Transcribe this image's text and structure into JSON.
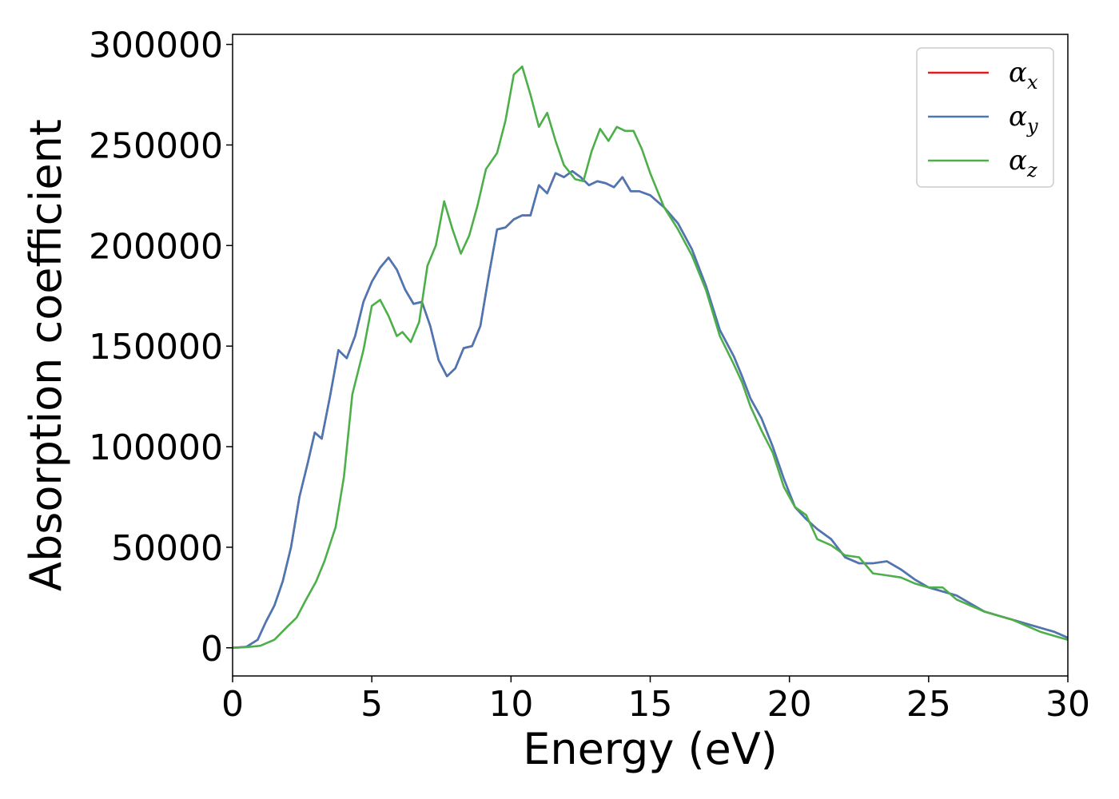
{
  "chart_data": {
    "type": "line",
    "title": "",
    "xlabel": "Energy (eV)",
    "ylabel": "Absorption coefficient",
    "xlim": [
      0,
      30
    ],
    "ylim": [
      -14000,
      305000
    ],
    "xticks": [
      0,
      5,
      10,
      15,
      20,
      25,
      30
    ],
    "yticks": [
      0,
      50000,
      100000,
      150000,
      200000,
      250000,
      300000
    ],
    "xtick_labels": [
      "0",
      "5",
      "10",
      "15",
      "20",
      "25",
      "30"
    ],
    "ytick_labels": [
      "0",
      "50000",
      "100000",
      "150000",
      "200000",
      "250000",
      "300000"
    ],
    "grid": false,
    "legend_position": "top-right",
    "series": [
      {
        "name": "α_x",
        "legend_symbol": "α",
        "legend_subscript": "x",
        "color": "#e41a1c",
        "points": [
          [
            0,
            0
          ],
          [
            0.5,
            500
          ],
          [
            0.9,
            4000
          ],
          [
            1.2,
            13000
          ],
          [
            1.5,
            21000
          ],
          [
            1.8,
            33000
          ],
          [
            2.1,
            50000
          ],
          [
            2.4,
            75000
          ],
          [
            2.7,
            92000
          ],
          [
            2.95,
            107000
          ],
          [
            3.2,
            104000
          ],
          [
            3.5,
            125000
          ],
          [
            3.8,
            148000
          ],
          [
            4.1,
            144000
          ],
          [
            4.4,
            155000
          ],
          [
            4.7,
            172000
          ],
          [
            5.0,
            182000
          ],
          [
            5.3,
            189000
          ],
          [
            5.6,
            194000
          ],
          [
            5.9,
            188000
          ],
          [
            6.2,
            178000
          ],
          [
            6.5,
            171000
          ],
          [
            6.8,
            172000
          ],
          [
            7.1,
            160000
          ],
          [
            7.4,
            143000
          ],
          [
            7.7,
            135000
          ],
          [
            8.0,
            139000
          ],
          [
            8.3,
            149000
          ],
          [
            8.6,
            150000
          ],
          [
            8.9,
            160000
          ],
          [
            9.2,
            185000
          ],
          [
            9.5,
            208000
          ],
          [
            9.8,
            209000
          ],
          [
            10.1,
            213000
          ],
          [
            10.4,
            215000
          ],
          [
            10.7,
            215000
          ],
          [
            11.0,
            230000
          ],
          [
            11.3,
            226000
          ],
          [
            11.6,
            236000
          ],
          [
            11.9,
            234000
          ],
          [
            12.2,
            237000
          ],
          [
            12.5,
            234000
          ],
          [
            12.8,
            230000
          ],
          [
            13.1,
            232000
          ],
          [
            13.4,
            231000
          ],
          [
            13.7,
            229000
          ],
          [
            14.0,
            234000
          ],
          [
            14.3,
            227000
          ],
          [
            14.6,
            227000
          ],
          [
            15.0,
            225000
          ],
          [
            15.5,
            219000
          ],
          [
            16.0,
            211000
          ],
          [
            16.5,
            198000
          ],
          [
            17.0,
            180000
          ],
          [
            17.5,
            158000
          ],
          [
            18.0,
            145000
          ],
          [
            18.3,
            135000
          ],
          [
            18.6,
            124000
          ],
          [
            19.0,
            114000
          ],
          [
            19.4,
            100000
          ],
          [
            19.8,
            84000
          ],
          [
            20.2,
            70000
          ],
          [
            20.6,
            64000
          ],
          [
            21.0,
            59000
          ],
          [
            21.5,
            54000
          ],
          [
            22.0,
            45000
          ],
          [
            22.5,
            42000
          ],
          [
            23.0,
            42000
          ],
          [
            23.5,
            43000
          ],
          [
            24.0,
            39000
          ],
          [
            24.5,
            34000
          ],
          [
            25.0,
            30000
          ],
          [
            25.5,
            28000
          ],
          [
            26.0,
            26000
          ],
          [
            26.5,
            22000
          ],
          [
            27.0,
            18000
          ],
          [
            27.5,
            16000
          ],
          [
            28.0,
            14000
          ],
          [
            28.5,
            12000
          ],
          [
            29.0,
            10000
          ],
          [
            29.5,
            8000
          ],
          [
            30.0,
            5000
          ]
        ]
      },
      {
        "name": "α_y",
        "legend_symbol": "α",
        "legend_subscript": "y",
        "color": "#4a78b5",
        "points": [
          [
            0,
            0
          ],
          [
            0.5,
            500
          ],
          [
            0.9,
            4000
          ],
          [
            1.2,
            13000
          ],
          [
            1.5,
            21000
          ],
          [
            1.8,
            33000
          ],
          [
            2.1,
            50000
          ],
          [
            2.4,
            75000
          ],
          [
            2.7,
            92000
          ],
          [
            2.95,
            107000
          ],
          [
            3.2,
            104000
          ],
          [
            3.5,
            125000
          ],
          [
            3.8,
            148000
          ],
          [
            4.1,
            144000
          ],
          [
            4.4,
            155000
          ],
          [
            4.7,
            172000
          ],
          [
            5.0,
            182000
          ],
          [
            5.3,
            189000
          ],
          [
            5.6,
            194000
          ],
          [
            5.9,
            188000
          ],
          [
            6.2,
            178000
          ],
          [
            6.5,
            171000
          ],
          [
            6.8,
            172000
          ],
          [
            7.1,
            160000
          ],
          [
            7.4,
            143000
          ],
          [
            7.7,
            135000
          ],
          [
            8.0,
            139000
          ],
          [
            8.3,
            149000
          ],
          [
            8.6,
            150000
          ],
          [
            8.9,
            160000
          ],
          [
            9.2,
            185000
          ],
          [
            9.5,
            208000
          ],
          [
            9.8,
            209000
          ],
          [
            10.1,
            213000
          ],
          [
            10.4,
            215000
          ],
          [
            10.7,
            215000
          ],
          [
            11.0,
            230000
          ],
          [
            11.3,
            226000
          ],
          [
            11.6,
            236000
          ],
          [
            11.9,
            234000
          ],
          [
            12.2,
            237000
          ],
          [
            12.5,
            234000
          ],
          [
            12.8,
            230000
          ],
          [
            13.1,
            232000
          ],
          [
            13.4,
            231000
          ],
          [
            13.7,
            229000
          ],
          [
            14.0,
            234000
          ],
          [
            14.3,
            227000
          ],
          [
            14.6,
            227000
          ],
          [
            15.0,
            225000
          ],
          [
            15.5,
            219000
          ],
          [
            16.0,
            211000
          ],
          [
            16.5,
            198000
          ],
          [
            17.0,
            180000
          ],
          [
            17.5,
            158000
          ],
          [
            18.0,
            145000
          ],
          [
            18.3,
            135000
          ],
          [
            18.6,
            124000
          ],
          [
            19.0,
            114000
          ],
          [
            19.4,
            100000
          ],
          [
            19.8,
            84000
          ],
          [
            20.2,
            70000
          ],
          [
            20.6,
            64000
          ],
          [
            21.0,
            59000
          ],
          [
            21.5,
            54000
          ],
          [
            22.0,
            45000
          ],
          [
            22.5,
            42000
          ],
          [
            23.0,
            42000
          ],
          [
            23.5,
            43000
          ],
          [
            24.0,
            39000
          ],
          [
            24.5,
            34000
          ],
          [
            25.0,
            30000
          ],
          [
            25.5,
            28000
          ],
          [
            26.0,
            26000
          ],
          [
            26.5,
            22000
          ],
          [
            27.0,
            18000
          ],
          [
            27.5,
            16000
          ],
          [
            28.0,
            14000
          ],
          [
            28.5,
            12000
          ],
          [
            29.0,
            10000
          ],
          [
            29.5,
            8000
          ],
          [
            30.0,
            5000
          ]
        ]
      },
      {
        "name": "α_z",
        "legend_symbol": "α",
        "legend_subscript": "z",
        "color": "#4daf4a",
        "points": [
          [
            0,
            0
          ],
          [
            0.5,
            300
          ],
          [
            1.0,
            1000
          ],
          [
            1.5,
            4000
          ],
          [
            2.0,
            11000
          ],
          [
            2.3,
            15000
          ],
          [
            2.6,
            23000
          ],
          [
            3.0,
            33000
          ],
          [
            3.3,
            43000
          ],
          [
            3.7,
            60000
          ],
          [
            4.0,
            85000
          ],
          [
            4.3,
            126000
          ],
          [
            4.7,
            148000
          ],
          [
            5.0,
            170000
          ],
          [
            5.3,
            173000
          ],
          [
            5.6,
            165000
          ],
          [
            5.9,
            155000
          ],
          [
            6.1,
            157000
          ],
          [
            6.4,
            152000
          ],
          [
            6.7,
            162000
          ],
          [
            7.0,
            190000
          ],
          [
            7.3,
            200000
          ],
          [
            7.6,
            222000
          ],
          [
            7.9,
            208000
          ],
          [
            8.2,
            196000
          ],
          [
            8.5,
            205000
          ],
          [
            8.8,
            220000
          ],
          [
            9.1,
            238000
          ],
          [
            9.5,
            246000
          ],
          [
            9.8,
            262000
          ],
          [
            10.1,
            285000
          ],
          [
            10.4,
            289000
          ],
          [
            10.7,
            275000
          ],
          [
            11.0,
            259000
          ],
          [
            11.3,
            266000
          ],
          [
            11.6,
            252000
          ],
          [
            11.9,
            240000
          ],
          [
            12.3,
            233000
          ],
          [
            12.6,
            232000
          ],
          [
            12.9,
            247000
          ],
          [
            13.2,
            258000
          ],
          [
            13.5,
            252000
          ],
          [
            13.8,
            259000
          ],
          [
            14.1,
            257000
          ],
          [
            14.4,
            257000
          ],
          [
            14.7,
            248000
          ],
          [
            15.0,
            236000
          ],
          [
            15.5,
            219000
          ],
          [
            16.0,
            208000
          ],
          [
            16.5,
            195000
          ],
          [
            17.0,
            178000
          ],
          [
            17.5,
            155000
          ],
          [
            18.0,
            141000
          ],
          [
            18.3,
            132000
          ],
          [
            18.6,
            120000
          ],
          [
            19.0,
            108000
          ],
          [
            19.4,
            97000
          ],
          [
            19.8,
            80000
          ],
          [
            20.2,
            70000
          ],
          [
            20.6,
            66000
          ],
          [
            21.0,
            54000
          ],
          [
            21.5,
            51000
          ],
          [
            22.0,
            46000
          ],
          [
            22.5,
            45000
          ],
          [
            23.0,
            37000
          ],
          [
            23.5,
            36000
          ],
          [
            24.0,
            35000
          ],
          [
            24.5,
            32000
          ],
          [
            25.0,
            30000
          ],
          [
            25.5,
            30000
          ],
          [
            26.0,
            24000
          ],
          [
            26.5,
            21000
          ],
          [
            27.0,
            18000
          ],
          [
            27.5,
            16000
          ],
          [
            28.0,
            14000
          ],
          [
            28.5,
            11000
          ],
          [
            29.0,
            8000
          ],
          [
            29.5,
            6000
          ],
          [
            30.0,
            4000
          ]
        ]
      }
    ]
  }
}
